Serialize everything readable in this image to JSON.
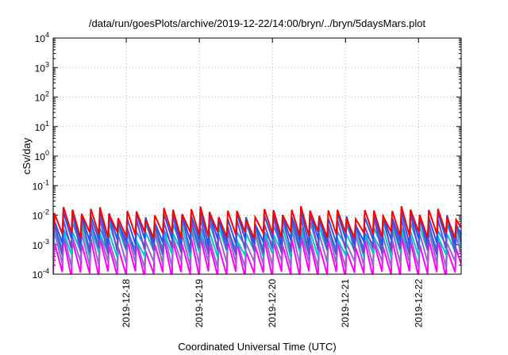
{
  "chart_data": {
    "type": "line",
    "title": "/data/run/goesPlots/archive/2019-12-22/14:00/bryn/../bryn/5daysMars.plot",
    "xlabel": "Coordinated Universal Time (UTC)",
    "ylabel": "cSv/day",
    "y_scale": "log",
    "ylim": [
      0.0001,
      10000
    ],
    "y_ticks": [
      {
        "base": "10",
        "exp": "-4",
        "value": 0.0001
      },
      {
        "base": "10",
        "exp": "-3",
        "value": 0.001
      },
      {
        "base": "10",
        "exp": "-2",
        "value": 0.01
      },
      {
        "base": "10",
        "exp": "-1",
        "value": 0.1
      },
      {
        "base": "10",
        "exp": "0",
        "value": 1
      },
      {
        "base": "10",
        "exp": "1",
        "value": 10
      },
      {
        "base": "10",
        "exp": "2",
        "value": 100
      },
      {
        "base": "10",
        "exp": "3",
        "value": 1000
      },
      {
        "base": "10",
        "exp": "4",
        "value": 10000
      }
    ],
    "xlim": [
      "2019-12-17",
      "2019-12-22 14:00"
    ],
    "x_ticks": [
      "2019-12-18",
      "2019-12-19",
      "2019-12-20",
      "2019-12-21",
      "2019-12-22"
    ],
    "grid": true,
    "legend": "none",
    "period_days": 0.125,
    "series": [
      {
        "color": "#ff0000",
        "peak_base": 0.013,
        "trough_base": 0.0022
      },
      {
        "color": "#2255ee",
        "peak_base": 0.01,
        "trough_base": 0.0013
      },
      {
        "color": "#7744cc",
        "peak_base": 0.0075,
        "trough_base": 0.0006
      },
      {
        "color": "#00aaff",
        "peak_base": 0.0045,
        "trough_base": 0.0009
      },
      {
        "color": "#00c8c8",
        "peak_base": 0.003,
        "trough_base": 0.0005
      },
      {
        "color": "#9966cc",
        "peak_base": 0.0022,
        "trough_base": 0.00022
      },
      {
        "color": "#ff00ff",
        "peak_base": 0.0012,
        "trough_base": 0.0001
      }
    ]
  }
}
